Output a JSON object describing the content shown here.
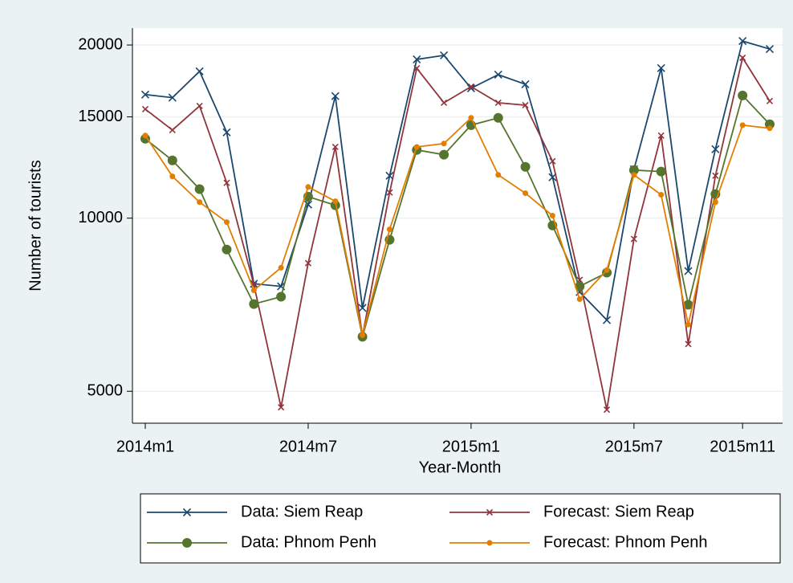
{
  "chart_data": {
    "type": "line",
    "x_label": "Year-Month",
    "y_label": "Number of tourists",
    "categories": [
      "2014m1",
      null,
      null,
      null,
      null,
      null,
      "2014m7",
      null,
      null,
      null,
      null,
      null,
      "2015m1",
      null,
      null,
      null,
      null,
      null,
      "2015m7",
      null,
      null,
      null,
      "2015m11",
      null
    ],
    "log_y": true,
    "grid": true,
    "legend_position": "bottom",
    "ylim": [
      4400,
      21400
    ],
    "yticks": [
      5000,
      10000,
      15000,
      20000
    ],
    "series": [
      {
        "name": "Data: Siem Reap",
        "color": "#1a476f",
        "marker": "x",
        "values": [
          16400,
          16200,
          18000,
          14100,
          7690,
          7610,
          10560,
          16300,
          6980,
          11850,
          18880,
          19190,
          16820,
          17760,
          17090,
          11780,
          7440,
          6650,
          12160,
          18230,
          8090,
          13180,
          20320,
          19680
        ]
      },
      {
        "name": "Forecast: Siem Reap",
        "color": "#90353b",
        "marker": "x-small",
        "values": [
          15470,
          14230,
          15670,
          11520,
          7660,
          4690,
          8350,
          13300,
          6240,
          11080,
          18220,
          15870,
          16930,
          15870,
          15720,
          12560,
          7810,
          4645,
          9200,
          13920,
          6040,
          11850,
          19000,
          15980
        ]
      },
      {
        "name": "Data: Phnom Penh",
        "color": "#55752f",
        "marker": "circle",
        "values": [
          13740,
          12600,
          11230,
          8820,
          7090,
          7300,
          10900,
          10530,
          6220,
          9170,
          13140,
          12890,
          14510,
          14940,
          12280,
          9710,
          7610,
          8040,
          12120,
          12050,
          7070,
          11010,
          16340,
          14560
        ]
      },
      {
        "name": "Forecast: Phnom Penh",
        "color": "#e37e00",
        "marker": "circle-small",
        "values": [
          13920,
          11820,
          10660,
          9840,
          7490,
          8200,
          11330,
          10700,
          6260,
          9560,
          13300,
          13480,
          14940,
          11890,
          11050,
          10100,
          7230,
          8120,
          11890,
          10980,
          6530,
          10660,
          14510,
          14330
        ]
      }
    ]
  }
}
